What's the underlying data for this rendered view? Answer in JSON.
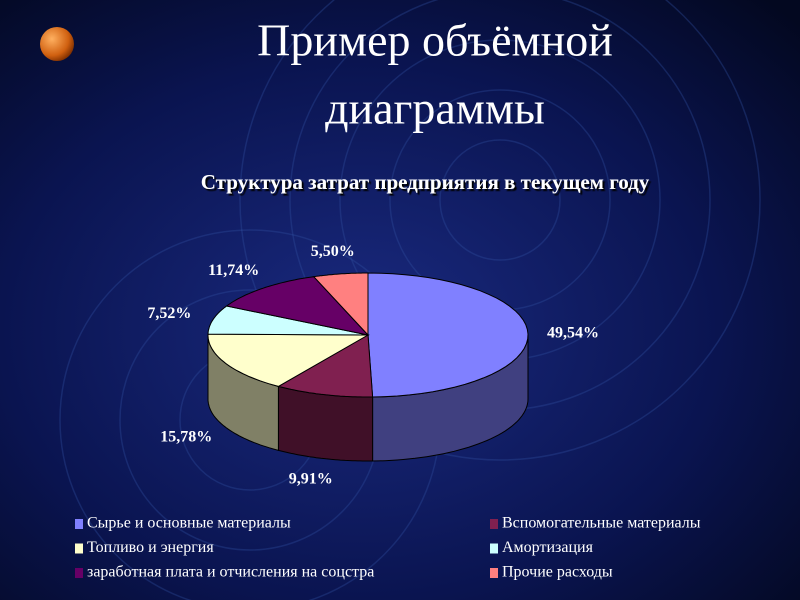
{
  "slide_title": [
    "Пример объёмной",
    "диаграммы"
  ],
  "chart_data": {
    "type": "pie",
    "title": "Структура затрат предприятия в текущем году",
    "categories": [
      "Сырье и основные материалы",
      "Вспомогательные материалы",
      "Топливо и энергия",
      "Амортизация",
      "заработная плата и отчисления на соцстра",
      "Прочие расходы"
    ],
    "values": [
      49.54,
      9.91,
      15.78,
      7.52,
      11.74,
      5.5
    ],
    "value_labels": [
      "49,54%",
      "9,91%",
      "15,78%",
      "7,52%",
      "11,74%",
      "5,50%"
    ],
    "colors": [
      "#8080ff",
      "#802050",
      "#ffffcc",
      "#ccffff",
      "#660066",
      "#ff8080"
    ]
  }
}
